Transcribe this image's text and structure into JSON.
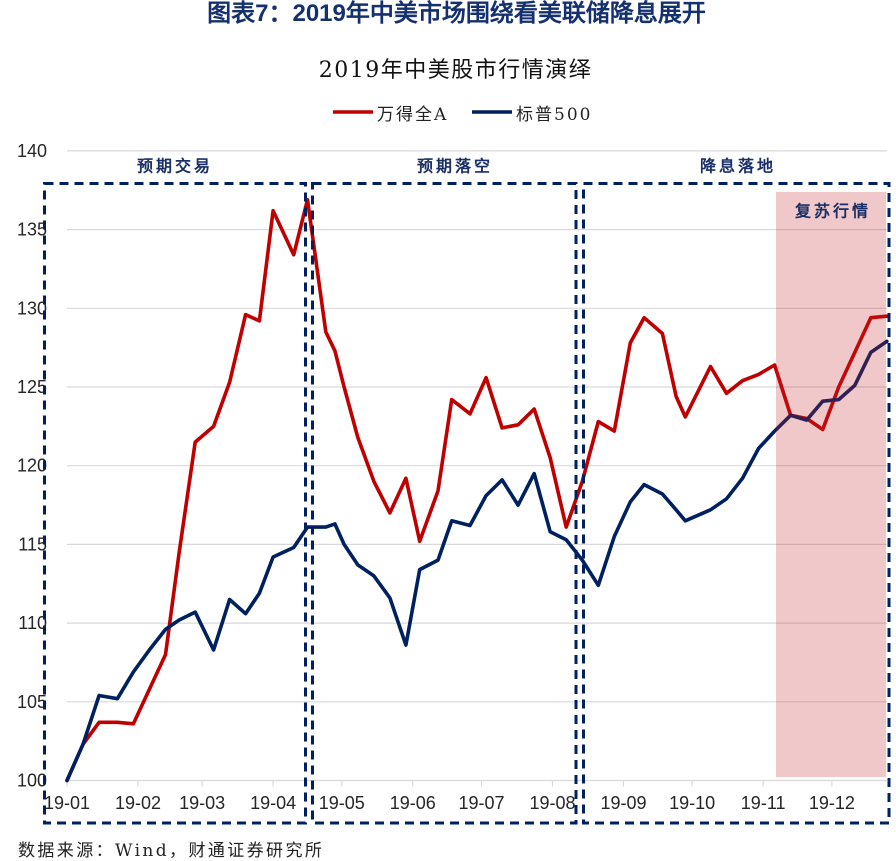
{
  "page": {
    "figure_title": "图表7：2019年中美市场围绕看美联储降息展开",
    "chart_title": "2019年中美股市行情演绎",
    "source_note": "数据来源：Wind，财通证券研究所"
  },
  "legend": [
    {
      "label": "万得全A",
      "color": "#C00000"
    },
    {
      "label": "标普500",
      "color": "#002060"
    }
  ],
  "annotations": {
    "box_color": "#002060",
    "phases": [
      {
        "label": "预期交易"
      },
      {
        "label": "预期落空"
      },
      {
        "label": "降息落地"
      }
    ],
    "highlight": {
      "label": "复苏行情",
      "color": "rgba(195,35,43,0.25)"
    }
  },
  "chart_data": {
    "type": "line",
    "title": "2019年中美股市行情演绎",
    "xlabel": "",
    "ylabel": "",
    "ylim": [
      100,
      140
    ],
    "yticks": [
      100,
      105,
      110,
      115,
      120,
      125,
      130,
      135,
      140
    ],
    "xticks": [
      "19-01",
      "19-02",
      "19-03",
      "19-04",
      "19-05",
      "19-06",
      "19-07",
      "19-08",
      "19-09",
      "19-10",
      "19-11",
      "19-12"
    ],
    "grid": "horizontal",
    "legend_position": "top",
    "x": [
      "2019-01-01",
      "2019-01-08",
      "2019-01-15",
      "2019-01-23",
      "2019-01-30",
      "2019-02-06",
      "2019-02-13",
      "2019-02-19",
      "2019-02-26",
      "2019-03-06",
      "2019-03-13",
      "2019-03-20",
      "2019-03-26",
      "2019-04-01",
      "2019-04-10",
      "2019-04-16",
      "2019-04-24",
      "2019-04-28",
      "2019-05-02",
      "2019-05-08",
      "2019-05-15",
      "2019-05-22",
      "2019-05-29",
      "2019-06-04",
      "2019-06-12",
      "2019-06-18",
      "2019-06-26",
      "2019-07-03",
      "2019-07-10",
      "2019-07-17",
      "2019-07-24",
      "2019-07-31",
      "2019-08-07",
      "2019-08-14",
      "2019-08-21",
      "2019-08-28",
      "2019-09-04",
      "2019-09-10",
      "2019-09-18",
      "2019-09-24",
      "2019-09-28",
      "2019-10-09",
      "2019-10-16",
      "2019-10-23",
      "2019-10-30",
      "2019-11-06",
      "2019-11-13",
      "2019-11-20",
      "2019-11-27",
      "2019-12-04",
      "2019-12-11",
      "2019-12-18",
      "2019-12-25"
    ],
    "series": [
      {
        "name": "万得全A",
        "color": "#C00000",
        "values": [
          100.0,
          102.3,
          103.7,
          103.7,
          103.6,
          105.8,
          108.0,
          114.5,
          121.5,
          122.5,
          125.3,
          129.6,
          129.2,
          136.2,
          133.4,
          136.9,
          128.5,
          127.3,
          125.0,
          121.8,
          119.0,
          117.0,
          119.2,
          115.2,
          118.4,
          124.2,
          123.3,
          125.6,
          122.4,
          122.6,
          123.6,
          120.5,
          116.1,
          119.0,
          122.8,
          122.2,
          127.8,
          129.4,
          128.4,
          124.4,
          123.1,
          126.3,
          124.6,
          125.4,
          125.8,
          126.4,
          123.2,
          123.0,
          122.3,
          125.0,
          127.2,
          129.4,
          129.5
        ]
      },
      {
        "name": "标普500",
        "color": "#002060",
        "values": [
          100.0,
          102.3,
          105.4,
          105.2,
          106.9,
          108.3,
          109.6,
          110.2,
          110.7,
          108.3,
          111.5,
          110.6,
          111.9,
          114.2,
          114.8,
          116.1,
          116.1,
          116.3,
          115.0,
          113.7,
          113.0,
          111.6,
          108.6,
          113.4,
          114.0,
          116.5,
          116.2,
          118.1,
          119.1,
          117.5,
          119.5,
          115.8,
          115.3,
          114.0,
          112.4,
          115.5,
          117.7,
          118.8,
          118.2,
          117.2,
          116.5,
          117.2,
          117.9,
          119.2,
          121.1,
          122.2,
          123.2,
          122.9,
          124.1,
          124.2,
          125.1,
          127.2,
          127.9
        ]
      }
    ],
    "annotations": [
      {
        "type": "dashed-box",
        "label": "预期交易"
      },
      {
        "type": "dashed-box",
        "label": "预期落空"
      },
      {
        "type": "dashed-box",
        "label": "降息落地"
      },
      {
        "type": "shaded-region",
        "label": "复苏行情"
      }
    ]
  }
}
